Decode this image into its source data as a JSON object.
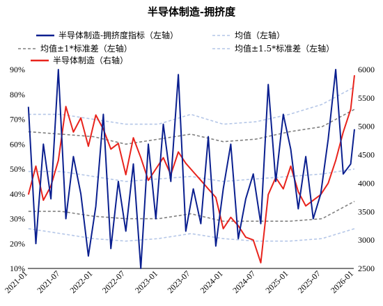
{
  "chart_data": {
    "type": "line",
    "title": "半导体制造-拥挤度",
    "x_ticks": [
      "2021-01",
      "2021-07",
      "2022-01",
      "2022-07",
      "2023-01",
      "2023-07",
      "2024-01",
      "2024-07",
      "2025-01",
      "2025-07",
      "2026-01"
    ],
    "x_range": [
      "2021-01",
      "2026-01"
    ],
    "y_left": {
      "ticks": [
        "10%",
        "20%",
        "30%",
        "40%",
        "50%",
        "60%",
        "70%",
        "80%",
        "90%"
      ],
      "range": [
        0.1,
        0.9
      ]
    },
    "y_right": {
      "ticks": [
        "2500",
        "3000",
        "3500",
        "4000",
        "4500",
        "5000",
        "5500",
        "6000"
      ],
      "range": [
        2500,
        6000
      ]
    },
    "legend_position": "top",
    "legend": [
      {
        "label": "半导体制造-拥挤度指标（左轴）",
        "style": "solid",
        "color": "#0a1f8f"
      },
      {
        "label": "均值（左轴）",
        "style": "dashed",
        "color": "#b4c6e7"
      },
      {
        "label": "均值±1*标准差（左轴）",
        "style": "dashed",
        "color": "#7f7f7f"
      },
      {
        "label": "均值±1.5*标准差（左轴）",
        "style": "dashed",
        "color": "#b4c6e7"
      },
      {
        "label": "半导体制造（右轴）",
        "style": "solid",
        "color": "#e8231c"
      }
    ],
    "series": [
      {
        "name": "半导体制造-拥挤度指标（左轴）",
        "axis": "left",
        "color": "#0a1f8f",
        "x": [
          "2021-01-04",
          "2021-02-15",
          "2021-03-29",
          "2021-05-10",
          "2021-06-21",
          "2021-08-02",
          "2021-09-13",
          "2021-10-25",
          "2021-12-06",
          "2022-01-17",
          "2022-02-28",
          "2022-04-11",
          "2022-05-23",
          "2022-07-04",
          "2022-08-15",
          "2022-09-26",
          "2022-11-07",
          "2022-12-19",
          "2023-01-30",
          "2023-03-13",
          "2023-04-24",
          "2023-06-05",
          "2023-07-17",
          "2023-08-28",
          "2023-10-09",
          "2023-11-20",
          "2024-01-01",
          "2024-02-12",
          "2024-03-25",
          "2024-05-06",
          "2024-06-17",
          "2024-07-29",
          "2024-09-09",
          "2024-10-21",
          "2024-12-02",
          "2025-01-13",
          "2025-02-24",
          "2025-04-07",
          "2025-05-19",
          "2025-06-30",
          "2025-08-11",
          "2025-09-22",
          "2025-11-03",
          "2025-12-15",
          "2026-01-05"
        ],
        "values": [
          0.75,
          0.2,
          0.6,
          0.38,
          0.9,
          0.3,
          0.55,
          0.4,
          0.15,
          0.35,
          0.72,
          0.18,
          0.45,
          0.25,
          0.52,
          0.1,
          0.6,
          0.3,
          0.68,
          0.45,
          0.88,
          0.25,
          0.42,
          0.28,
          0.63,
          0.19,
          0.42,
          0.6,
          0.22,
          0.38,
          0.48,
          0.28,
          0.84,
          0.45,
          0.72,
          0.58,
          0.34,
          0.55,
          0.3,
          0.4,
          0.62,
          0.9,
          0.48,
          0.52,
          0.66
        ]
      },
      {
        "name": "均值（左轴）",
        "axis": "left",
        "color": "#b4c6e7",
        "x": [
          "2021-01-04",
          "2021-07-05",
          "2022-01-03",
          "2022-07-04",
          "2023-01-02",
          "2023-07-03",
          "2024-01-01",
          "2024-07-01",
          "2025-01-06",
          "2025-07-07",
          "2026-01-05"
        ],
        "values": [
          0.49,
          0.49,
          0.47,
          0.45,
          0.46,
          0.47,
          0.45,
          0.46,
          0.47,
          0.48,
          0.5
        ]
      },
      {
        "name": "均值+1*标准差（左轴）",
        "axis": "left",
        "color": "#7f7f7f",
        "x": [
          "2021-01-04",
          "2021-07-05",
          "2022-01-03",
          "2022-07-04",
          "2023-01-02",
          "2023-07-03",
          "2024-01-01",
          "2024-07-01",
          "2025-01-06",
          "2025-07-07",
          "2026-01-05"
        ],
        "values": [
          0.65,
          0.64,
          0.63,
          0.6,
          0.62,
          0.64,
          0.61,
          0.62,
          0.65,
          0.67,
          0.74
        ]
      },
      {
        "name": "均值-1*标准差（左轴）",
        "axis": "left",
        "color": "#7f7f7f",
        "x": [
          "2021-01-04",
          "2021-07-05",
          "2022-01-03",
          "2022-07-04",
          "2023-01-02",
          "2023-07-03",
          "2024-01-01",
          "2024-07-01",
          "2025-01-06",
          "2025-07-07",
          "2026-01-05"
        ],
        "values": [
          0.33,
          0.33,
          0.31,
          0.3,
          0.3,
          0.32,
          0.29,
          0.29,
          0.29,
          0.3,
          0.37
        ]
      },
      {
        "name": "均值+1.5*标准差（左轴）",
        "axis": "left",
        "color": "#b4c6e7",
        "x": [
          "2021-01-04",
          "2021-07-05",
          "2022-01-03",
          "2022-07-04",
          "2023-01-02",
          "2023-07-03",
          "2024-01-01",
          "2024-07-01",
          "2025-01-06",
          "2025-07-07",
          "2026-01-05"
        ],
        "values": [
          0.72,
          0.72,
          0.7,
          0.68,
          0.68,
          0.72,
          0.68,
          0.69,
          0.72,
          0.76,
          0.83
        ]
      },
      {
        "name": "均值-1.5*标准差（左轴）",
        "axis": "left",
        "color": "#b4c6e7",
        "x": [
          "2021-01-04",
          "2021-07-05",
          "2022-01-03",
          "2022-07-04",
          "2023-01-02",
          "2023-07-03",
          "2024-01-01",
          "2024-07-01",
          "2025-01-06",
          "2025-07-07",
          "2026-01-05"
        ],
        "values": [
          0.26,
          0.24,
          0.22,
          0.21,
          0.22,
          0.24,
          0.22,
          0.21,
          0.21,
          0.22,
          0.26
        ]
      },
      {
        "name": "半导体制造（右轴）",
        "axis": "right",
        "color": "#e8231c",
        "x": [
          "2021-01-04",
          "2021-02-15",
          "2021-03-29",
          "2021-05-10",
          "2021-06-21",
          "2021-08-02",
          "2021-09-13",
          "2021-10-25",
          "2021-12-06",
          "2022-01-17",
          "2022-02-28",
          "2022-04-11",
          "2022-05-23",
          "2022-07-04",
          "2022-08-15",
          "2022-09-26",
          "2022-11-07",
          "2022-12-19",
          "2023-01-30",
          "2023-03-13",
          "2023-04-24",
          "2023-06-05",
          "2023-07-17",
          "2023-08-28",
          "2023-10-09",
          "2023-11-20",
          "2024-01-01",
          "2024-02-12",
          "2024-03-25",
          "2024-05-06",
          "2024-06-17",
          "2024-07-29",
          "2024-09-09",
          "2024-10-21",
          "2024-12-02",
          "2025-01-13",
          "2025-02-24",
          "2025-04-07",
          "2025-05-19",
          "2025-06-30",
          "2025-08-11",
          "2025-09-22",
          "2025-11-03",
          "2025-12-15",
          "2026-01-05"
        ],
        "values": [
          3800,
          4300,
          3700,
          3950,
          4400,
          5350,
          4900,
          5150,
          4650,
          5200,
          4950,
          4600,
          4700,
          4150,
          4800,
          4450,
          4050,
          4250,
          4450,
          4150,
          4550,
          4350,
          4200,
          4050,
          3900,
          3750,
          3200,
          3400,
          3250,
          3050,
          3000,
          2600,
          3800,
          4100,
          3900,
          4300,
          3850,
          3600,
          3700,
          3800,
          4000,
          4400,
          4900,
          5300,
          5900
        ]
      }
    ]
  }
}
